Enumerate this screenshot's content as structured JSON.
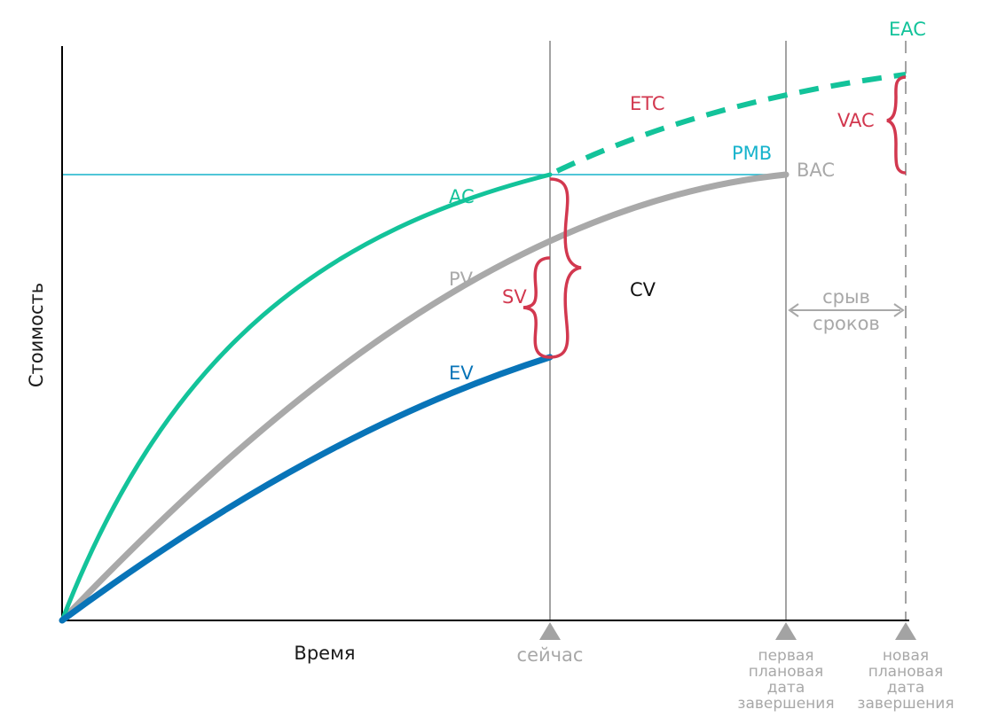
{
  "colors": {
    "ac": "#13c39a",
    "pv": "#a9a9a9",
    "ev": "#0874b8",
    "pmb": "#17b3cc",
    "variance": "#d2384f",
    "axis": "#000000",
    "marker": "#a3a3a3",
    "text_dark": "#1a1a1a"
  },
  "axes": {
    "ylabel": "Стоимость",
    "xlabel": "Время"
  },
  "curves": {
    "ac": "AC",
    "pv": "PV",
    "ev": "EV",
    "etc": "ETC"
  },
  "labels": {
    "pmb": "PMB",
    "bac": "BAC",
    "eac": "EAC",
    "vac": "VAC",
    "sv": "SV",
    "cv": "CV",
    "slip_line1": "срыв",
    "slip_line2": "сроков"
  },
  "milestones": {
    "now": "сейчас",
    "first_planned": [
      "первая",
      "плановая",
      "дата",
      "завершения"
    ],
    "new_planned": [
      "новая",
      "плановая",
      "дата",
      "завершения"
    ]
  }
}
